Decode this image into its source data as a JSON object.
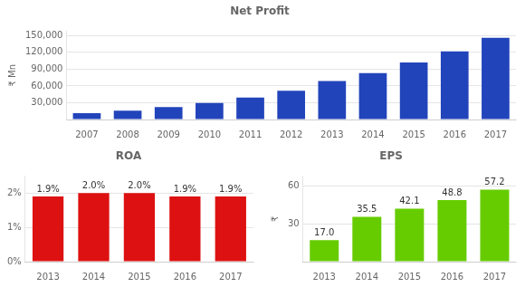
{
  "chart_data": [
    {
      "type": "bar",
      "title": "Net Profit",
      "ylabel": "₹ Mn",
      "categories": [
        "2007",
        "2008",
        "2009",
        "2010",
        "2011",
        "2012",
        "2013",
        "2014",
        "2015",
        "2016",
        "2017"
      ],
      "values": [
        11450,
        15900,
        22450,
        29650,
        39260,
        51600,
        68600,
        83000,
        102000,
        122000,
        146000
      ],
      "color": "#2244bb",
      "ylim": [
        0,
        158000
      ],
      "yticks": [
        {
          "value": 0,
          "label": null
        },
        {
          "value": 30000,
          "label": "30,000"
        },
        {
          "value": 60000,
          "label": "60,000"
        },
        {
          "value": 90000,
          "label": "90,000"
        },
        {
          "value": 120000,
          "label": "120,000"
        },
        {
          "value": 150000,
          "label": "150,000"
        }
      ],
      "grid": true
    },
    {
      "type": "bar",
      "title": "ROA",
      "categories": [
        "2013",
        "2014",
        "2015",
        "2016",
        "2017"
      ],
      "values": [
        1.9,
        2.0,
        2.0,
        1.9,
        1.9
      ],
      "value_labels": [
        "1.9%",
        "2.0%",
        "2.0%",
        "1.9%",
        "1.9%"
      ],
      "data_labels": true,
      "color": "#dd1111",
      "ylim": [
        0,
        2.5
      ],
      "yticks": [
        {
          "value": 0,
          "label": "0%"
        },
        {
          "value": 1,
          "label": "1%"
        },
        {
          "value": 2,
          "label": "2%"
        }
      ],
      "grid": true
    },
    {
      "type": "bar",
      "title": "EPS",
      "ylabel": "₹",
      "categories": [
        "2013",
        "2014",
        "2015",
        "2016",
        "2017"
      ],
      "values": [
        17.0,
        35.5,
        42.1,
        48.8,
        57.2
      ],
      "value_labels": [
        "17.0",
        "35.5",
        "42.1",
        "48.8",
        "57.2"
      ],
      "data_labels": true,
      "color": "#66cc00",
      "ylim": [
        0,
        68
      ],
      "yticks": [
        {
          "value": 0,
          "label": null
        },
        30,
        60
      ],
      "grid": true
    }
  ]
}
